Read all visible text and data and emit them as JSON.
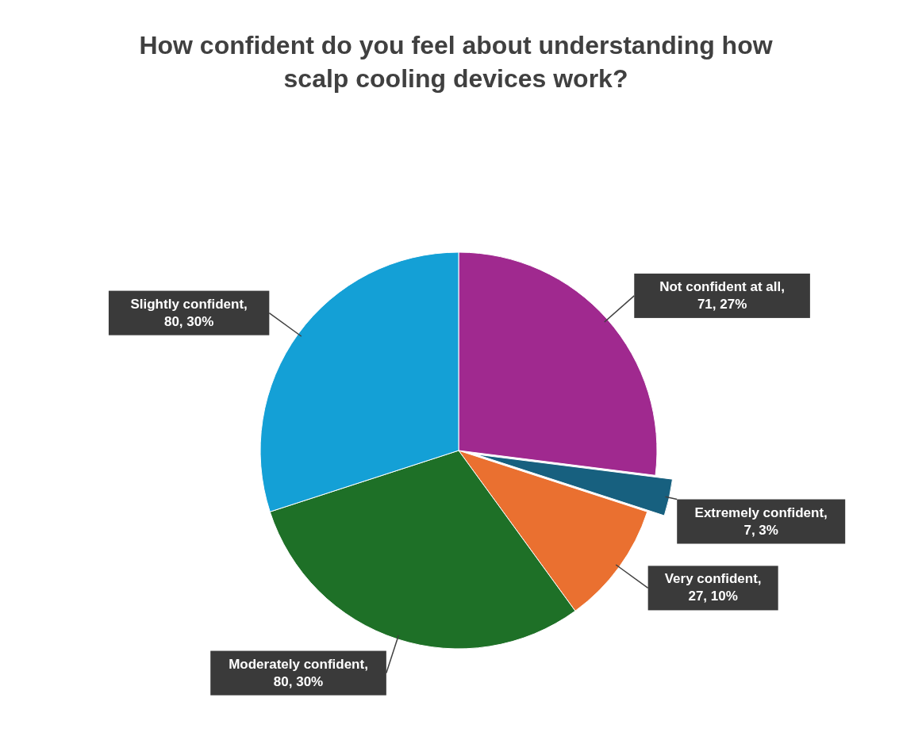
{
  "chart_data": {
    "type": "pie",
    "title": "How confident do you feel about understanding how scalp cooling devices work?",
    "categories": [
      "Not confident at all",
      "Extremely confident",
      "Very confident",
      "Moderately confident",
      "Slightly confident"
    ],
    "values": [
      27,
      3,
      10,
      30,
      30
    ],
    "colors": [
      "#a0298f",
      "#17607f",
      "#ea7030",
      "#1e7027",
      "#14a0d6"
    ],
    "value_labels": [
      ", 71, 27%",
      ", 7, 3%",
      ", 27, 10%",
      ", 80, 30%",
      ", 80, 30%"
    ]
  }
}
